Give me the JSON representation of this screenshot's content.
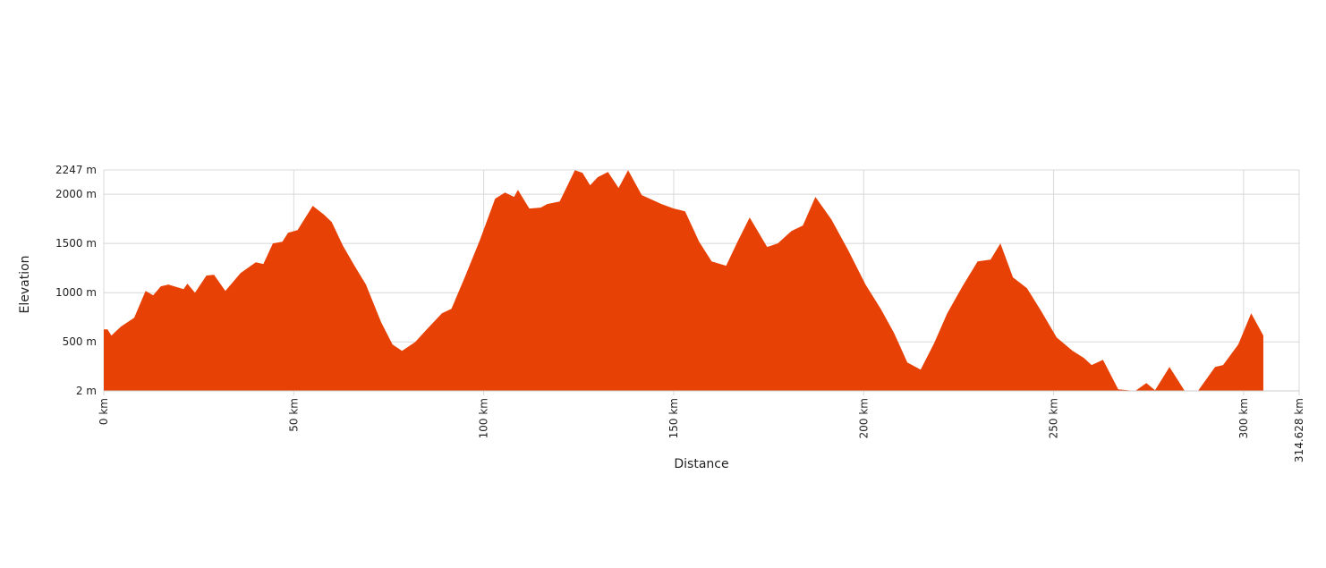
{
  "chart_data": {
    "type": "area",
    "xlabel": "Distance",
    "ylabel": "Elevation",
    "color": "#e84105",
    "grid": true,
    "xlim": [
      0,
      314.628
    ],
    "ylim": [
      2,
      2247
    ],
    "xticks": [
      {
        "value": 0,
        "label": "0 km"
      },
      {
        "value": 50,
        "label": "50 km"
      },
      {
        "value": 100,
        "label": "100 km"
      },
      {
        "value": 150,
        "label": "150 km"
      },
      {
        "value": 200,
        "label": "200 km"
      },
      {
        "value": 250,
        "label": "250 km"
      },
      {
        "value": 300,
        "label": "300 km"
      },
      {
        "value": 314.628,
        "label": "314.628 km"
      }
    ],
    "yticks": [
      {
        "value": 2,
        "label": "2 m"
      },
      {
        "value": 500,
        "label": "500 m"
      },
      {
        "value": 1000,
        "label": "1000 m"
      },
      {
        "value": 1500,
        "label": "1500 m"
      },
      {
        "value": 2000,
        "label": "2000 m"
      },
      {
        "value": 2247,
        "label": "2247 m"
      }
    ],
    "x": [
      0,
      1,
      2,
      4.5,
      8,
      11,
      13,
      15,
      17,
      21,
      22,
      24,
      27,
      29,
      32,
      36,
      40,
      42,
      44.5,
      47,
      48.5,
      51,
      55,
      58,
      60,
      63,
      66,
      69,
      73,
      76,
      78.5,
      82,
      85,
      89,
      91.5,
      95,
      99,
      103,
      105.6,
      108,
      109,
      112,
      115,
      116.7,
      120,
      124,
      126,
      128,
      130,
      132.7,
      135.5,
      138,
      141.6,
      146.8,
      150,
      153,
      156.7,
      160,
      163.8,
      166.8,
      170,
      174.6,
      177.4,
      181,
      184,
      187.3,
      191.5,
      196,
      200.5,
      204.5,
      208,
      211.5,
      215,
      218.6,
      222,
      226,
      230,
      233.4,
      236,
      239.3,
      243,
      246.8,
      250.8,
      255,
      258,
      260,
      263,
      267,
      271.5,
      274.4,
      276.7,
      280.5,
      284.5,
      288,
      292.5,
      294.6,
      298.6,
      302,
      305.2
    ],
    "values": [
      627,
      627,
      564,
      655,
      745,
      1018,
      973,
      1064,
      1082,
      1036,
      1091,
      1000,
      1173,
      1182,
      1018,
      1200,
      1309,
      1291,
      1500,
      1518,
      1609,
      1636,
      1882,
      1791,
      1718,
      1473,
      1273,
      1082,
      700,
      473,
      409,
      500,
      627,
      791,
      836,
      1155,
      1536,
      1955,
      2018,
      1973,
      2045,
      1855,
      1864,
      1900,
      1927,
      2245,
      2218,
      2091,
      2173,
      2227,
      2064,
      2245,
      1991,
      1900,
      1855,
      1827,
      1518,
      1318,
      1273,
      1518,
      1764,
      1464,
      1500,
      1627,
      1682,
      1973,
      1745,
      1427,
      1082,
      836,
      591,
      291,
      218,
      491,
      791,
      1064,
      1318,
      1336,
      1500,
      1155,
      1045,
      809,
      545,
      409,
      336,
      264,
      318,
      18,
      2,
      82,
      9,
      245,
      2,
      2,
      245,
      264,
      473,
      791,
      564
    ]
  }
}
